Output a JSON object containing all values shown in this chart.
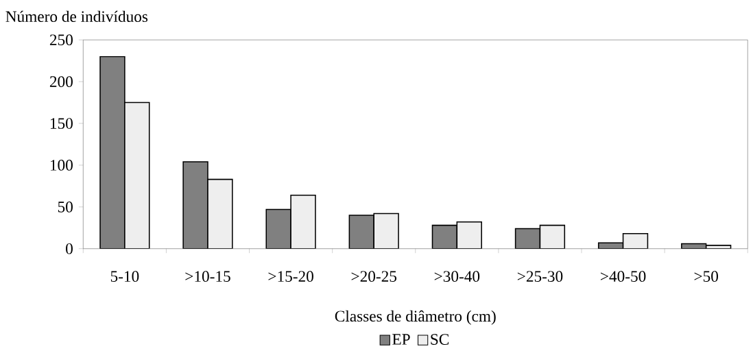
{
  "chart_data": {
    "type": "bar",
    "ylabel": "Número de indivíduos",
    "xlabel": "Classes de diâmetro (cm)",
    "categories": [
      "5-10",
      ">10-15",
      ">15-20",
      ">20-25",
      ">30-40",
      ">25-30",
      ">40-50",
      ">50"
    ],
    "series": [
      {
        "name": "EP",
        "color": "#808080",
        "values": [
          230,
          104,
          47,
          40,
          28,
          24,
          7,
          6
        ]
      },
      {
        "name": "SC",
        "color": "#eeeeee",
        "values": [
          175,
          83,
          64,
          42,
          32,
          28,
          18,
          4
        ]
      }
    ],
    "ylim": [
      0,
      250
    ],
    "yticks": [
      0,
      50,
      100,
      150,
      200,
      250
    ],
    "grid": false,
    "legend": "bottom"
  }
}
